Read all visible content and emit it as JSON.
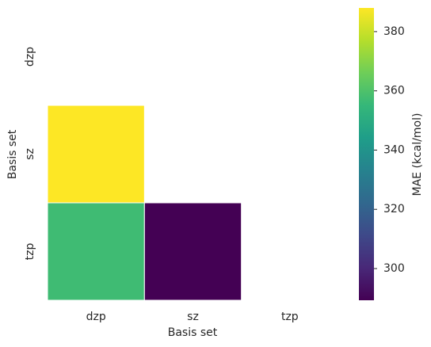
{
  "chart_data": {
    "type": "heatmap",
    "x_label": "Basis set",
    "y_label": "Basis set",
    "x_categories": [
      "dzp",
      "sz",
      "tzp"
    ],
    "y_categories": [
      "dzp",
      "sz",
      "tzp"
    ],
    "values": [
      [
        null,
        null,
        null
      ],
      [
        388,
        null,
        null
      ],
      [
        357,
        289.3,
        null
      ]
    ],
    "colormap": "viridis",
    "colorbar": {
      "label": "MAE (kcal/mol)",
      "lim": [
        289.3,
        388
      ],
      "ticks": [
        300,
        320,
        340,
        360,
        380
      ]
    }
  }
}
